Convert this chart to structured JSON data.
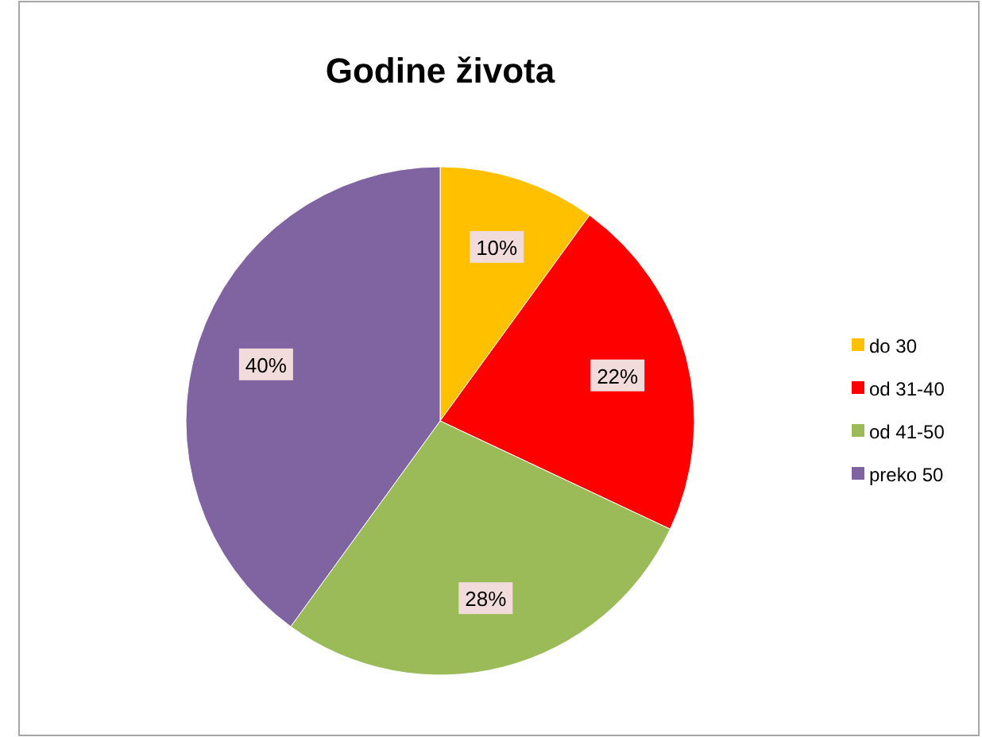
{
  "chart_data": {
    "type": "pie",
    "title": "Godine života",
    "categories": [
      "do 30",
      "od 31-40",
      "od 41-50",
      "preko 50"
    ],
    "values": [
      10,
      22,
      28,
      40
    ],
    "colors": [
      "#ffc000",
      "#ff0000",
      "#9bbb59",
      "#8064a2"
    ],
    "value_labels": [
      "10%",
      "22%",
      "28%",
      "40%"
    ],
    "legend": "right"
  }
}
